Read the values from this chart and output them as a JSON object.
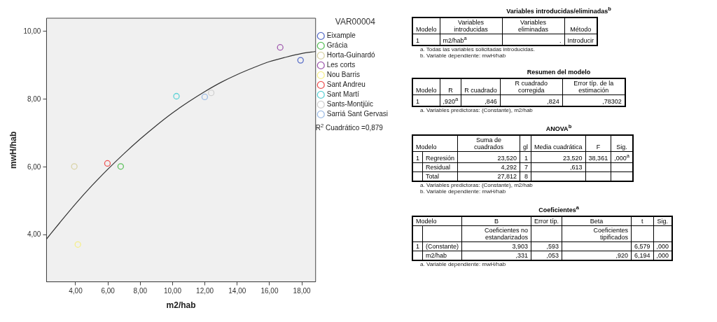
{
  "chart_data": [
    {
      "type": "scatter",
      "xlabel": "m2/hab",
      "ylabel": "mwH/hab",
      "legend_title": "VAR00004",
      "legend": "top right",
      "marker": "circle",
      "xlim": [
        2.2,
        18.85
      ],
      "ylim": [
        2.62,
        10.39
      ],
      "xticks": [
        {
          "value": 4,
          "label": "4,00"
        },
        {
          "value": 6,
          "label": "6,00"
        },
        {
          "value": 8,
          "label": "8,00"
        },
        {
          "value": 10,
          "label": "10,00"
        },
        {
          "value": 12,
          "label": "12,00"
        },
        {
          "value": 14,
          "label": "14,00"
        },
        {
          "value": 16,
          "label": "16,00"
        },
        {
          "value": 18,
          "label": "18,00"
        }
      ],
      "yticks": [
        {
          "value": 4,
          "label": "4,00"
        },
        {
          "value": 6,
          "label": "6,00"
        },
        {
          "value": 8,
          "label": "8,00"
        },
        {
          "value": 10,
          "label": "10,00"
        }
      ],
      "annotations": [
        "R$^{2}$ Cuadrático =0,879"
      ],
      "series": [
        {
          "name": "Eixample",
          "color": "#5a6fc8",
          "x": [
            17.92
          ],
          "values": [
            9.15
          ]
        },
        {
          "name": "Grácia",
          "color": "#5cc15c",
          "x": [
            6.79
          ],
          "values": [
            6.02
          ]
        },
        {
          "name": "Horta-Guinardó",
          "color": "#d9d3a6",
          "x": [
            3.92
          ],
          "values": [
            6.02
          ]
        },
        {
          "name": "Les corts",
          "color": "#a05aae",
          "x": [
            16.66
          ],
          "values": [
            9.53
          ]
        },
        {
          "name": "Nou Barris",
          "color": "#f5ef8c",
          "x": [
            4.14
          ],
          "values": [
            3.72
          ]
        },
        {
          "name": "Sant Andreu",
          "color": "#ee5555",
          "x": [
            5.97
          ],
          "values": [
            6.11
          ]
        },
        {
          "name": "Sant Martí",
          "color": "#5dd2d6",
          "x": [
            10.24
          ],
          "values": [
            8.09
          ]
        },
        {
          "name": "Sants-Montjüic",
          "color": "#d0d0d0",
          "x": [
            12.39
          ],
          "values": [
            8.19
          ]
        },
        {
          "name": "Sarriá Sant Gervasi",
          "color": "#9ebde6",
          "x": [
            11.99
          ],
          "values": [
            8.07
          ]
        },
        {
          "type": "line",
          "color": "#333333",
          "marker": "none",
          "x": [
            2.2,
            3,
            4,
            5,
            6,
            7,
            8,
            9,
            10,
            11,
            12,
            13,
            14,
            15,
            16,
            17,
            18,
            18.85
          ],
          "values": [
            3.88,
            4.35,
            4.92,
            5.45,
            5.94,
            6.4,
            6.83,
            7.23,
            7.6,
            7.93,
            8.23,
            8.5,
            8.73,
            8.93,
            9.11,
            9.24,
            9.35,
            9.41
          ]
        }
      ]
    },
    {
      "type": "other",
      "title": "Variables introducidas/eliminadas$^{b}$",
      "categories": [
        "Modelo",
        "Variables introducidas",
        "Variables eliminadas",
        "Método"
      ],
      "cell_labels": [
        [
          "1",
          "m2/hab$^{a}$",
          ".",
          "Introducir"
        ]
      ],
      "annotations": [
        "a. Todas las variables solicitadas introducidas.",
        "b. Variable dependiente: mwH/hab"
      ]
    },
    {
      "type": "other",
      "title": "Resumen del modelo",
      "categories": [
        "Modelo",
        "R",
        "R cuadrado",
        "R cuadrado corregida",
        "Error típ. de la estimación"
      ],
      "cell_labels": [
        [
          "1",
          ",920$^{a}$",
          ",846",
          ",824",
          ",78302"
        ]
      ],
      "annotations": [
        "a. Variables predictoras: (Constante), m2/hab"
      ]
    },
    {
      "type": "other",
      "title": "ANOVA$^{b}$",
      "categories": [
        "Modelo",
        null,
        "Suma de cuadrados",
        "gl",
        "Media cuadrática",
        "F",
        "Sig."
      ],
      "cell_labels": [
        [
          "1",
          "Regresión",
          "23,520",
          "1",
          "23,520",
          "38,361",
          ",000$^{a}$"
        ],
        [
          null,
          "Residual",
          "4,292",
          "7",
          ",613",
          null,
          null
        ],
        [
          null,
          "Total",
          "27,812",
          "8",
          null,
          null,
          null
        ]
      ],
      "annotations": [
        "a. Variables predictoras: (Constante), m2/hab",
        "b. Variable dependiente: mwH/hab"
      ]
    },
    {
      "type": "other",
      "title": "Coeficientes$^{a}$",
      "categories": [
        "Modelo",
        null,
        "B",
        "Error típ.",
        "Beta",
        "t",
        "Sig."
      ],
      "cell_labels": [
        [
          null,
          null,
          "Coeficientes no estandarizados",
          null,
          "Coeficientes tipificados",
          null,
          null
        ],
        [
          "1",
          "(Constante)",
          "3,903",
          ",593",
          null,
          "6,579",
          ",000"
        ],
        [
          null,
          "m2/hab",
          ",331",
          ",053",
          ",920",
          "6,194",
          ",000"
        ]
      ],
      "annotations": [
        "a. Variable dependiente: mwH/hab"
      ]
    }
  ]
}
